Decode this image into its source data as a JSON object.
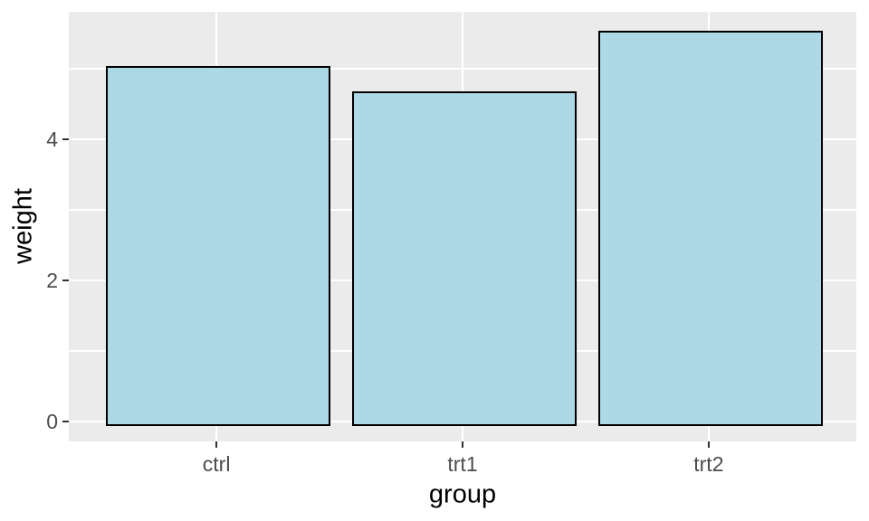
{
  "chart_data": {
    "type": "bar",
    "title": "",
    "xlabel": "group",
    "ylabel": "weight",
    "categories": [
      "ctrl",
      "trt1",
      "trt2"
    ],
    "values": [
      5.03,
      4.66,
      5.53
    ],
    "ylim": [
      -0.28,
      5.81
    ],
    "yticks_major": [
      0,
      2,
      4
    ],
    "yticks_minor": [
      1,
      3,
      5
    ],
    "ytick_labels": [
      "0",
      "2",
      "4"
    ],
    "legend_position": "none",
    "grid": "on",
    "colors": {
      "bar_fill": "#ADD8E6",
      "bar_stroke": "#000000",
      "panel_bg": "#EBEBEB",
      "gridline": "#FFFFFF",
      "tick_label": "#4D4D4D",
      "axis_title": "#000000",
      "tick_mark": "#333333"
    }
  }
}
